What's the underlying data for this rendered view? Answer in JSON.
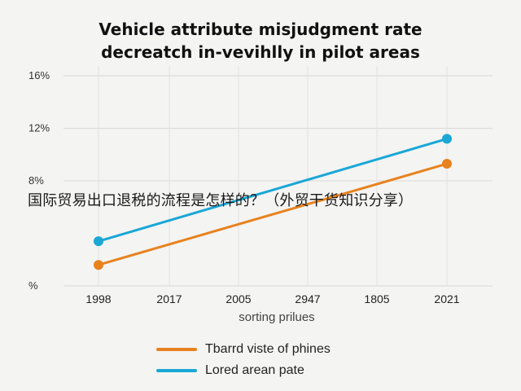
{
  "title_lines": [
    "Vehicle attribute misjudgment rate",
    "decreatch in-vevihlly in pilot areas"
  ],
  "overlay_text": "国际贸易出口退税的流程是怎样的？（外贸干货知识分享）",
  "chart_data": {
    "type": "line",
    "title": "Vehicle attribute misjudgment rate decreatch in-vevihlly in pilot areas",
    "xlabel": "sorting prilues",
    "ylabel": "",
    "categories": [
      "1998",
      "2017",
      "2005",
      "2947",
      "1805",
      "2021"
    ],
    "yticks": [
      {
        "value": 0,
        "label": "%"
      },
      {
        "value": 8,
        "label": "8%"
      },
      {
        "value": 12,
        "label": "12%"
      },
      {
        "value": 16,
        "label": "16%"
      }
    ],
    "ylim": [
      0,
      16
    ],
    "grid": true,
    "legend_position": "bottom",
    "series": [
      {
        "name": "Tbarrd viste of phines",
        "color": "#e8821e",
        "x": [
          "1998",
          "2021"
        ],
        "values": [
          1.6,
          9.3
        ]
      },
      {
        "name": "Lored arean pate",
        "color": "#1aa7d6",
        "x": [
          "1998",
          "2021"
        ],
        "values": [
          3.4,
          11.2
        ]
      }
    ]
  }
}
